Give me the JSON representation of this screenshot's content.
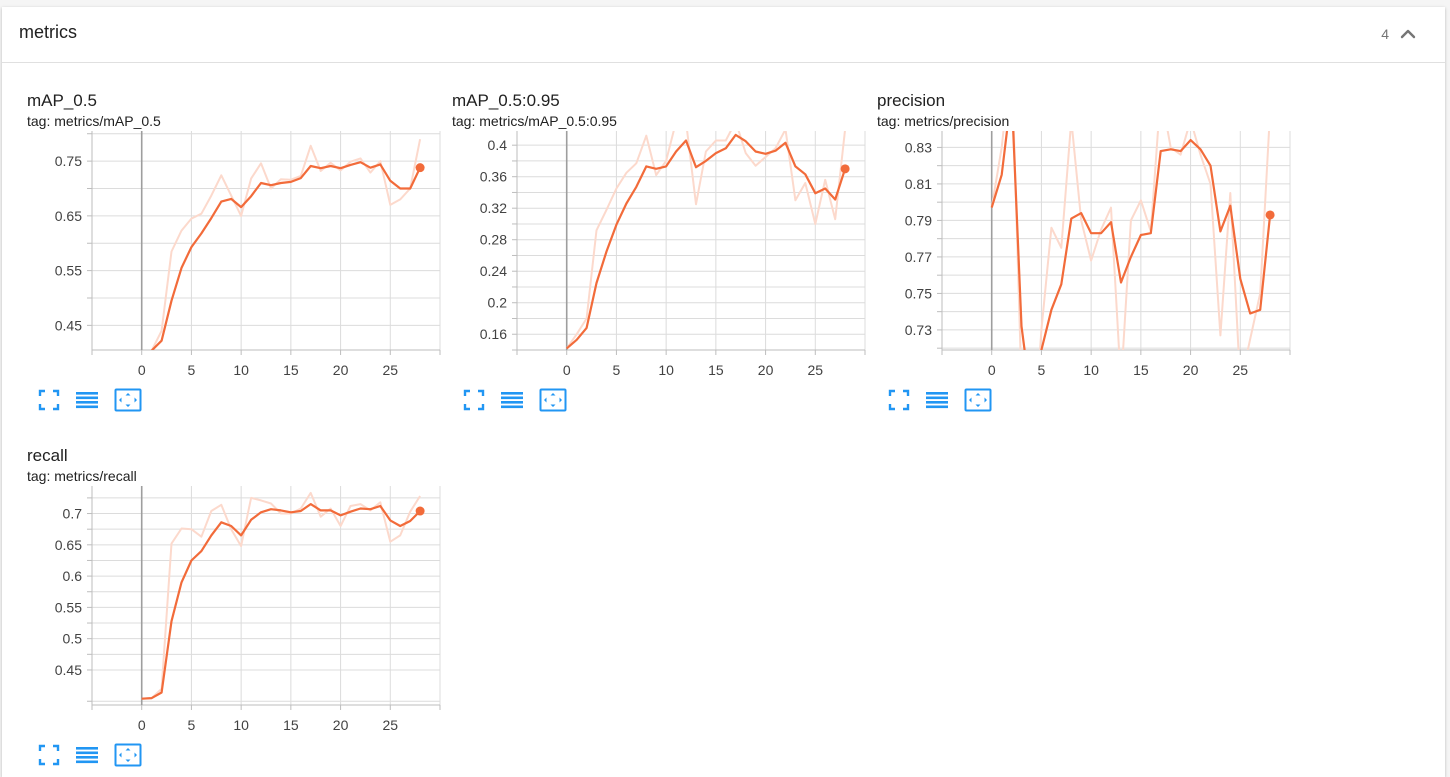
{
  "section": {
    "title": "metrics",
    "count": "4"
  },
  "icons": {
    "collapse": "chevron-up-icon",
    "fullscreen": "expand-icon",
    "log_scale": "lines-icon",
    "fit_domain": "fit-domain-icon"
  },
  "colors": {
    "smoothed": "#f26b3a",
    "raw": "#fcd9cc",
    "axis_marker": "#9e9e9e",
    "grid": "#dcdcdc",
    "icon": "#2196f3"
  },
  "chart_data": [
    {
      "type": "line",
      "title": "mAP_0.5",
      "tag": "tag: metrics/mAP_0.5",
      "xlabel": "",
      "ylabel": "",
      "xlim": [
        -5,
        30
      ],
      "ylim": [
        0.405,
        0.805
      ],
      "xticks": [
        0,
        5,
        10,
        15,
        20,
        25
      ],
      "yticks": [
        0.45,
        0.55,
        0.65,
        0.75
      ],
      "minor_yticks": [
        0.4,
        0.5,
        0.6,
        0.7,
        0.8
      ],
      "grid": true,
      "series": [
        {
          "role": "smoothed",
          "x": [
            0,
            1,
            2,
            3,
            4,
            5,
            6,
            7,
            8,
            9,
            10,
            11,
            12,
            13,
            14,
            15,
            16,
            17,
            18,
            19,
            20,
            21,
            22,
            23,
            24,
            25,
            26,
            27,
            28
          ],
          "values": [
            0.374,
            0.404,
            0.422,
            0.495,
            0.555,
            0.593,
            0.618,
            0.646,
            0.676,
            0.681,
            0.666,
            0.686,
            0.71,
            0.706,
            0.71,
            0.712,
            0.719,
            0.741,
            0.737,
            0.741,
            0.737,
            0.743,
            0.748,
            0.738,
            0.744,
            0.714,
            0.7,
            0.7,
            0.738
          ]
        },
        {
          "role": "raw",
          "x": [
            0,
            1,
            2,
            3,
            4,
            5,
            6,
            7,
            8,
            9,
            10,
            11,
            12,
            13,
            14,
            15,
            16,
            17,
            18,
            19,
            20,
            21,
            22,
            23,
            24,
            25,
            26,
            27,
            28
          ],
          "values": [
            0.374,
            0.404,
            0.44,
            0.585,
            0.623,
            0.645,
            0.654,
            0.687,
            0.724,
            0.687,
            0.65,
            0.718,
            0.746,
            0.7,
            0.717,
            0.716,
            0.723,
            0.778,
            0.732,
            0.747,
            0.733,
            0.749,
            0.755,
            0.729,
            0.75,
            0.67,
            0.68,
            0.7,
            0.79
          ]
        }
      ]
    },
    {
      "type": "line",
      "title": "mAP_0.5:0.95",
      "tag": "tag: metrics/mAP_0.5:0.95",
      "xlabel": "",
      "ylabel": "",
      "xlim": [
        -5,
        30
      ],
      "ylim": [
        0.14,
        0.418
      ],
      "xticks": [
        0,
        5,
        10,
        15,
        20,
        25
      ],
      "yticks": [
        0.16,
        0.2,
        0.24,
        0.28,
        0.32,
        0.36,
        0.4
      ],
      "minor_yticks": [
        0.14,
        0.18,
        0.22,
        0.26,
        0.3,
        0.34,
        0.38
      ],
      "grid": true,
      "series": [
        {
          "role": "smoothed",
          "x": [
            0,
            1,
            2,
            3,
            4,
            5,
            6,
            7,
            8,
            9,
            10,
            11,
            12,
            13,
            14,
            15,
            16,
            17,
            18,
            19,
            20,
            21,
            22,
            23,
            24,
            25,
            26,
            27,
            28
          ],
          "values": [
            0.142,
            0.153,
            0.168,
            0.225,
            0.265,
            0.299,
            0.326,
            0.347,
            0.373,
            0.37,
            0.373,
            0.392,
            0.406,
            0.372,
            0.38,
            0.39,
            0.396,
            0.413,
            0.405,
            0.392,
            0.389,
            0.393,
            0.403,
            0.373,
            0.363,
            0.339,
            0.345,
            0.331,
            0.37
          ]
        },
        {
          "role": "raw",
          "x": [
            0,
            1,
            2,
            3,
            4,
            5,
            6,
            7,
            8,
            9,
            10,
            11,
            12,
            13,
            14,
            15,
            16,
            17,
            18,
            19,
            20,
            21,
            22,
            23,
            24,
            25,
            26,
            27,
            28
          ],
          "values": [
            0.142,
            0.16,
            0.18,
            0.292,
            0.318,
            0.345,
            0.365,
            0.377,
            0.412,
            0.362,
            0.38,
            0.43,
            0.43,
            0.325,
            0.392,
            0.406,
            0.406,
            0.43,
            0.39,
            0.374,
            0.385,
            0.396,
            0.42,
            0.33,
            0.352,
            0.3,
            0.356,
            0.306,
            0.42
          ]
        }
      ]
    },
    {
      "type": "line",
      "title": "precision",
      "tag": "tag: metrics/precision",
      "xlabel": "",
      "ylabel": "",
      "xlim": [
        -5,
        30
      ],
      "ylim": [
        0.719,
        0.839
      ],
      "xticks": [
        0,
        5,
        10,
        15,
        20,
        25
      ],
      "yticks": [
        0.73,
        0.75,
        0.77,
        0.79,
        0.81,
        0.83
      ],
      "minor_yticks": [
        0.72,
        0.74,
        0.76,
        0.78,
        0.8,
        0.82
      ],
      "grid": true,
      "series": [
        {
          "role": "smoothed",
          "x": [
            0,
            1,
            2,
            3,
            4,
            5,
            6,
            7,
            8,
            9,
            10,
            11,
            12,
            13,
            14,
            15,
            16,
            17,
            18,
            19,
            20,
            21,
            22,
            23,
            24,
            25,
            26,
            27,
            28
          ],
          "values": [
            0.797,
            0.815,
            0.86,
            0.732,
            0.69,
            0.719,
            0.741,
            0.755,
            0.791,
            0.794,
            0.783,
            0.783,
            0.789,
            0.756,
            0.77,
            0.782,
            0.783,
            0.828,
            0.829,
            0.828,
            0.834,
            0.829,
            0.82,
            0.784,
            0.798,
            0.758,
            0.739,
            0.741,
            0.793
          ]
        },
        {
          "role": "raw",
          "x": [
            0,
            1,
            2,
            3,
            4,
            5,
            6,
            7,
            8,
            9,
            10,
            11,
            12,
            13,
            14,
            15,
            16,
            17,
            18,
            19,
            20,
            21,
            22,
            23,
            24,
            25,
            26,
            27,
            28
          ],
          "values": [
            0.797,
            0.83,
            0.88,
            0.7,
            0.65,
            0.73,
            0.786,
            0.775,
            0.845,
            0.79,
            0.768,
            0.785,
            0.797,
            0.7,
            0.79,
            0.801,
            0.784,
            0.86,
            0.83,
            0.826,
            0.845,
            0.826,
            0.81,
            0.727,
            0.805,
            0.7,
            0.725,
            0.75,
            0.85
          ]
        }
      ]
    },
    {
      "type": "line",
      "title": "recall",
      "tag": "tag: metrics/recall",
      "xlabel": "",
      "ylabel": "",
      "xlim": [
        -5,
        30
      ],
      "ylim": [
        0.394,
        0.744
      ],
      "xticks": [
        0,
        5,
        10,
        15,
        20,
        25
      ],
      "yticks": [
        0.45,
        0.5,
        0.55,
        0.6,
        0.65,
        0.7
      ],
      "minor_yticks": [
        0.4,
        0.475,
        0.525,
        0.575,
        0.625,
        0.675,
        0.725
      ],
      "grid": true,
      "series": [
        {
          "role": "smoothed",
          "x": [
            0,
            1,
            2,
            3,
            4,
            5,
            6,
            7,
            8,
            9,
            10,
            11,
            12,
            13,
            14,
            15,
            16,
            17,
            18,
            19,
            20,
            21,
            22,
            23,
            24,
            25,
            26,
            27,
            28
          ],
          "values": [
            0.404,
            0.405,
            0.414,
            0.528,
            0.59,
            0.625,
            0.64,
            0.665,
            0.686,
            0.68,
            0.665,
            0.69,
            0.702,
            0.707,
            0.705,
            0.702,
            0.704,
            0.715,
            0.705,
            0.705,
            0.697,
            0.703,
            0.708,
            0.707,
            0.712,
            0.689,
            0.68,
            0.688,
            0.704
          ]
        },
        {
          "role": "raw",
          "x": [
            0,
            1,
            2,
            3,
            4,
            5,
            6,
            7,
            8,
            9,
            10,
            11,
            12,
            13,
            14,
            15,
            16,
            17,
            18,
            19,
            20,
            21,
            22,
            23,
            24,
            25,
            26,
            27,
            28
          ],
          "values": [
            0.404,
            0.405,
            0.42,
            0.652,
            0.676,
            0.675,
            0.663,
            0.704,
            0.714,
            0.675,
            0.648,
            0.725,
            0.721,
            0.716,
            0.7,
            0.7,
            0.708,
            0.733,
            0.695,
            0.708,
            0.68,
            0.712,
            0.715,
            0.705,
            0.718,
            0.655,
            0.665,
            0.703,
            0.728
          ]
        }
      ]
    }
  ]
}
